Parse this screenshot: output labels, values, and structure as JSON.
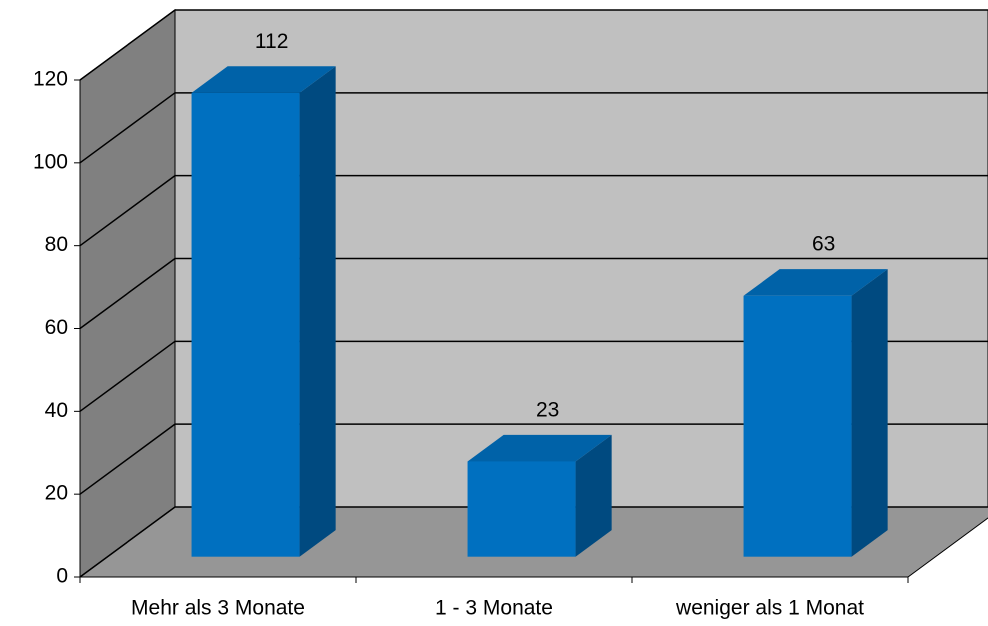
{
  "chart_data": {
    "type": "bar3d",
    "categories": [
      "Mehr als 3 Monate",
      "1 - 3 Monate",
      "weniger als 1 Monat"
    ],
    "values": [
      112,
      23,
      63
    ],
    "color": "#0070c0",
    "ylim": [
      0,
      120
    ],
    "yticks": [
      0,
      20,
      40,
      60,
      80,
      100,
      120
    ],
    "grid": true
  }
}
